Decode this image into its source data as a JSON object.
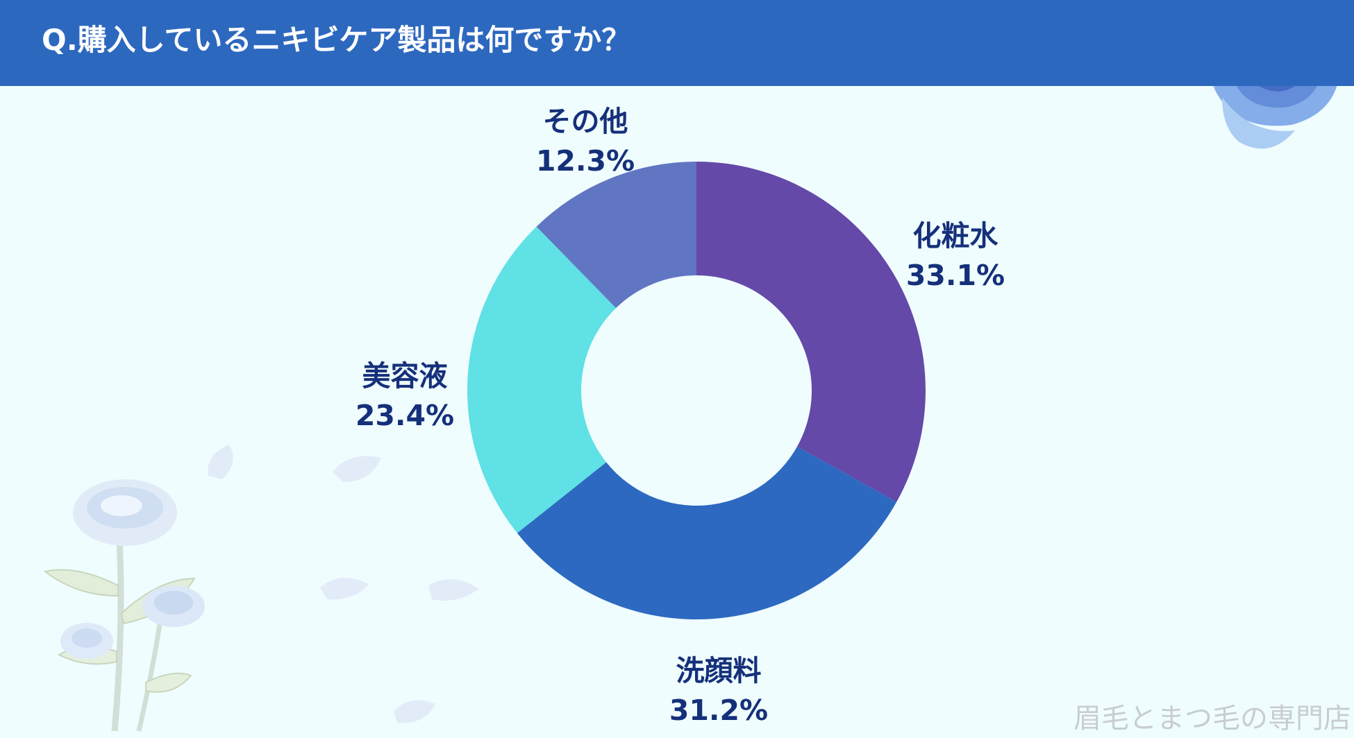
{
  "header": {
    "title": "Q.購入しているニキビケア製品は何ですか？",
    "background_color": "#2d68bf"
  },
  "chart_data": {
    "type": "pie",
    "title": "Q.購入しているニキビケア製品は何ですか？",
    "donut": true,
    "start": "12 o'clock, clockwise",
    "slices": [
      {
        "label": "化粧水",
        "value": 33.1,
        "display": "33.1%",
        "color": "#6449a8"
      },
      {
        "label": "洗顔料",
        "value": 31.2,
        "display": "31.2%",
        "color": "#2d69c0"
      },
      {
        "label": "美容液",
        "value": 23.4,
        "display": "23.4%",
        "color": "#5fe1e5"
      },
      {
        "label": "その他",
        "value": 12.3,
        "display": "12.3%",
        "color": "#6076c3"
      }
    ],
    "label_color": "#15307a"
  },
  "watermark": {
    "text": "眉毛とまつ毛の専門店"
  },
  "decorations": {
    "top_right": "blue-rose-icon",
    "bottom_left": "white-rose-stem-icon",
    "petals": "petal-icon"
  }
}
